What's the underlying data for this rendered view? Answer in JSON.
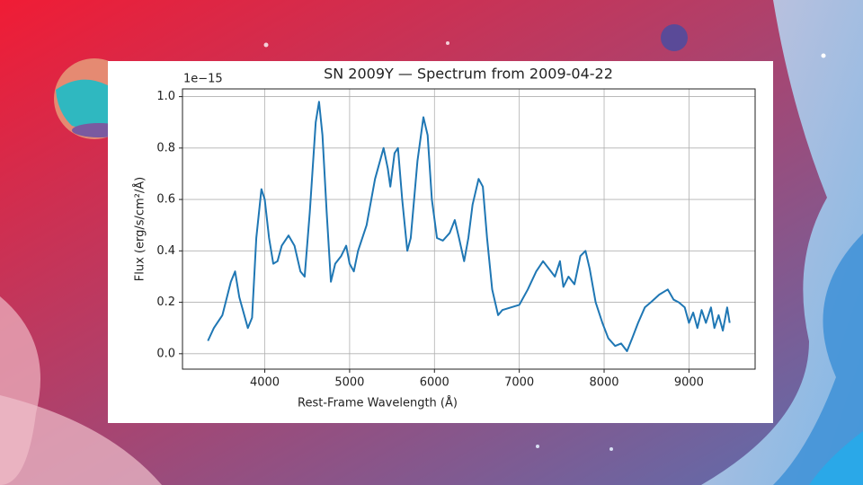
{
  "chart_data": {
    "type": "line",
    "title": "SN 2009Y — Spectrum from 2009-04-22",
    "x_label": "Rest-Frame Wavelength (Å)",
    "y_label": "Flux (erg/s/cm²/Å)",
    "y_offset_label": "1e−15",
    "grid": true,
    "xlim": [
      3030,
      9780
    ],
    "ylim": [
      -0.06,
      1.03
    ],
    "xticks": [
      4000,
      5000,
      6000,
      7000,
      8000,
      9000
    ],
    "yticks": [
      {
        "value": 0,
        "label": "0.0"
      },
      0.2,
      0.4,
      0.6,
      0.8,
      {
        "value": 1,
        "label": "1.0"
      }
    ],
    "x": [
      3330,
      3400,
      3500,
      3600,
      3650,
      3700,
      3800,
      3850,
      3900,
      3960,
      4000,
      4050,
      4100,
      4150,
      4200,
      4280,
      4350,
      4420,
      4470,
      4530,
      4600,
      4640,
      4680,
      4730,
      4780,
      4830,
      4900,
      4960,
      5000,
      5050,
      5100,
      5200,
      5300,
      5400,
      5450,
      5480,
      5530,
      5570,
      5620,
      5680,
      5720,
      5800,
      5870,
      5920,
      5970,
      6030,
      6100,
      6180,
      6240,
      6290,
      6350,
      6400,
      6450,
      6520,
      6570,
      6620,
      6680,
      6750,
      6800,
      6900,
      7000,
      7100,
      7200,
      7280,
      7350,
      7420,
      7480,
      7520,
      7580,
      7650,
      7720,
      7780,
      7830,
      7900,
      7980,
      8050,
      8130,
      8200,
      8270,
      8330,
      8400,
      8480,
      8550,
      8650,
      8750,
      8820,
      8880,
      8950,
      9000,
      9050,
      9100,
      9150,
      9200,
      9260,
      9300,
      9350,
      9400,
      9450,
      9480
    ],
    "series": [
      {
        "color": "#1f77b4",
        "values": [
          0.05,
          0.1,
          0.15,
          0.28,
          0.32,
          0.22,
          0.1,
          0.14,
          0.45,
          0.64,
          0.6,
          0.45,
          0.35,
          0.36,
          0.42,
          0.46,
          0.42,
          0.32,
          0.3,
          0.55,
          0.9,
          0.98,
          0.85,
          0.55,
          0.28,
          0.35,
          0.38,
          0.42,
          0.35,
          0.32,
          0.4,
          0.5,
          0.68,
          0.8,
          0.72,
          0.65,
          0.78,
          0.8,
          0.6,
          0.4,
          0.45,
          0.75,
          0.92,
          0.85,
          0.6,
          0.45,
          0.44,
          0.47,
          0.52,
          0.45,
          0.36,
          0.45,
          0.58,
          0.68,
          0.65,
          0.45,
          0.25,
          0.15,
          0.17,
          0.18,
          0.19,
          0.25,
          0.32,
          0.36,
          0.33,
          0.3,
          0.36,
          0.26,
          0.3,
          0.27,
          0.38,
          0.4,
          0.33,
          0.2,
          0.12,
          0.06,
          0.03,
          0.04,
          0.01,
          0.06,
          0.12,
          0.18,
          0.2,
          0.23,
          0.25,
          0.21,
          0.2,
          0.18,
          0.12,
          0.16,
          0.1,
          0.17,
          0.12,
          0.18,
          0.1,
          0.15,
          0.09,
          0.18,
          0.12
        ]
      }
    ]
  }
}
